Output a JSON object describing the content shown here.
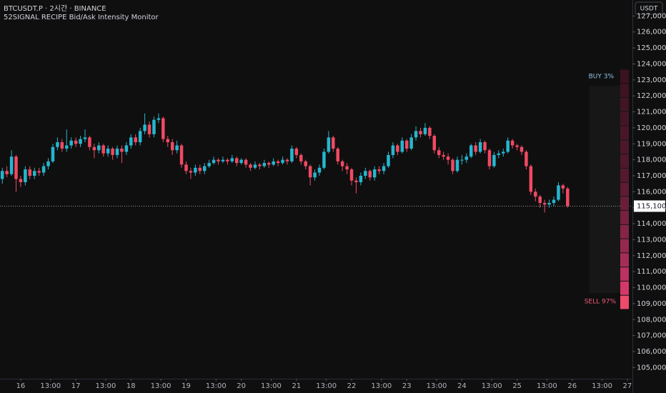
{
  "chart_data": {
    "type": "candlestick",
    "title": "BTCUSDT.P · 2시간 · BINANCE",
    "subtitle": "52SIGNAL RECIPE Bid/Ask Intensity Monitor",
    "currency": "USDT",
    "up_color": "#26b6cf",
    "down_color": "#f04a63",
    "open": [
      116800,
      117300,
      117100,
      118200,
      116800,
      116600,
      117400,
      117000,
      117300,
      117200,
      117600,
      117900,
      118800,
      119100,
      118700,
      118900,
      119200,
      119000,
      119300,
      119400,
      118800,
      118600,
      118900,
      118400,
      118700,
      118300,
      118700,
      118500,
      118900,
      119400,
      119100,
      119800,
      120200,
      119600,
      120500,
      120600,
      119300,
      119100,
      118600,
      118900,
      117700,
      117300,
      117200,
      117500,
      117300,
      117600,
      117800,
      118000,
      117900,
      118000,
      117900,
      118100,
      117800,
      118000,
      117700,
      117500,
      117700,
      117600,
      117800,
      117700,
      117900,
      117800,
      118000,
      117900,
      118700,
      118300,
      117900,
      117600,
      116900,
      117200,
      117500,
      118500,
      119400,
      118700,
      117900,
      117600,
      117400,
      116700,
      116600,
      117000,
      117300,
      116900,
      117400,
      117300,
      117600,
      118300,
      118900,
      118500,
      119200,
      118700,
      119400,
      119800,
      119600,
      120000,
      119500,
      118600,
      118300,
      118200,
      118000,
      117300,
      118000,
      118000,
      118200,
      118900,
      118500,
      119100,
      118600,
      117600,
      118300,
      118400,
      118500,
      119200,
      118900,
      118800,
      118500,
      117600,
      116000,
      115700,
      115300,
      115200,
      115300,
      115500,
      116400,
      116200
    ],
    "high": [
      117500,
      117600,
      118600,
      118300,
      117000,
      117600,
      117600,
      117500,
      117500,
      117800,
      118100,
      119000,
      119400,
      119300,
      119900,
      119400,
      119400,
      119500,
      119900,
      119500,
      119000,
      119100,
      119000,
      118900,
      118800,
      118900,
      118900,
      119100,
      119600,
      119600,
      120000,
      120900,
      120400,
      120700,
      120900,
      120700,
      119500,
      119300,
      119200,
      119000,
      117900,
      117500,
      117700,
      117700,
      117800,
      118000,
      118200,
      118100,
      118200,
      118100,
      118300,
      118200,
      118100,
      118100,
      117800,
      117900,
      117800,
      118000,
      117900,
      118100,
      118000,
      118200,
      118100,
      118900,
      118800,
      118400,
      118000,
      117700,
      117400,
      117700,
      118700,
      119800,
      119500,
      118800,
      118000,
      117800,
      117500,
      116900,
      117200,
      117500,
      117400,
      117600,
      117600,
      117800,
      118500,
      119100,
      119000,
      119400,
      119300,
      119600,
      120100,
      120000,
      120300,
      120100,
      119600,
      118800,
      118500,
      118400,
      118100,
      118200,
      118300,
      118400,
      119000,
      119100,
      119300,
      119200,
      118700,
      118500,
      118600,
      118700,
      119400,
      119300,
      119000,
      118900,
      118600,
      117700,
      116200,
      115800,
      115500,
      115500,
      115700,
      116600,
      116500,
      116300
    ],
    "low": [
      116500,
      116900,
      117000,
      116000,
      116300,
      116400,
      116800,
      116800,
      117000,
      117000,
      117400,
      117800,
      118600,
      118500,
      118500,
      118700,
      118800,
      118800,
      119100,
      118600,
      118100,
      118400,
      118200,
      118200,
      118000,
      118100,
      117800,
      118300,
      118700,
      118900,
      118900,
      119600,
      119400,
      119400,
      120300,
      119100,
      118800,
      118300,
      118400,
      117500,
      117100,
      116800,
      117000,
      117100,
      117100,
      117500,
      117700,
      117700,
      117800,
      117700,
      117800,
      117600,
      117700,
      117500,
      117300,
      117400,
      117400,
      117500,
      117500,
      117600,
      117600,
      117700,
      117700,
      117800,
      118100,
      117700,
      117400,
      116400,
      116700,
      117000,
      117400,
      118400,
      118500,
      117700,
      117300,
      117100,
      116400,
      115900,
      116400,
      116800,
      116700,
      116700,
      117100,
      117100,
      117500,
      118100,
      118300,
      118400,
      118500,
      118600,
      119200,
      119400,
      119500,
      119300,
      118400,
      118100,
      118000,
      117700,
      117100,
      117200,
      117700,
      117800,
      118100,
      118300,
      118400,
      118400,
      117400,
      117500,
      118100,
      118200,
      118400,
      118700,
      118600,
      118300,
      117400,
      115800,
      115400,
      115000,
      114700,
      115000,
      115100,
      115400,
      115900,
      115000
    ],
    "close": [
      117300,
      117100,
      118200,
      116800,
      116600,
      117400,
      117000,
      117300,
      117200,
      117600,
      117900,
      118800,
      119100,
      118700,
      118900,
      119200,
      119000,
      119300,
      119400,
      118800,
      118600,
      118900,
      118400,
      118700,
      118300,
      118700,
      118500,
      118900,
      119400,
      119100,
      119800,
      120200,
      119600,
      120500,
      120600,
      119300,
      119100,
      118600,
      118900,
      117700,
      117300,
      117200,
      117500,
      117300,
      117600,
      117800,
      118000,
      117900,
      118000,
      117900,
      118100,
      117800,
      118000,
      117700,
      117500,
      117700,
      117600,
      117800,
      117700,
      117900,
      117800,
      118000,
      117900,
      118700,
      118300,
      117900,
      117600,
      116900,
      117200,
      117500,
      118500,
      119400,
      118700,
      117900,
      117600,
      117400,
      116700,
      116600,
      117000,
      117300,
      116900,
      117400,
      117300,
      117600,
      118300,
      118900,
      118500,
      119200,
      118700,
      119400,
      119800,
      119600,
      120000,
      119500,
      118600,
      118300,
      118200,
      118000,
      117300,
      118000,
      118000,
      118200,
      118900,
      118500,
      119100,
      118600,
      117600,
      118300,
      118400,
      118500,
      119200,
      118900,
      118800,
      118500,
      117600,
      116000,
      115700,
      115300,
      115200,
      115300,
      115500,
      116400,
      116200,
      115100
    ],
    "xlim": [
      -0.5,
      137.1
    ],
    "xticks": [
      {
        "value": 4,
        "label": "16"
      },
      {
        "value": 10.5,
        "label": "13:00"
      },
      {
        "value": 16,
        "label": "17"
      },
      {
        "value": 22.5,
        "label": "13:00"
      },
      {
        "value": 28,
        "label": "18"
      },
      {
        "value": 34.5,
        "label": "13:00"
      },
      {
        "value": 40,
        "label": "19"
      },
      {
        "value": 46.5,
        "label": "13:00"
      },
      {
        "value": 52,
        "label": "20"
      },
      {
        "value": 58.5,
        "label": "13:00"
      },
      {
        "value": 64,
        "label": "21"
      },
      {
        "value": 70.5,
        "label": "13:00"
      },
      {
        "value": 76,
        "label": "22"
      },
      {
        "value": 82.5,
        "label": "13:00"
      },
      {
        "value": 88,
        "label": "23"
      },
      {
        "value": 94.5,
        "label": "13:00"
      },
      {
        "value": 100,
        "label": "24"
      },
      {
        "value": 106.5,
        "label": "13:00"
      },
      {
        "value": 112,
        "label": "25"
      },
      {
        "value": 118.5,
        "label": "13:00"
      },
      {
        "value": 124,
        "label": "26"
      },
      {
        "value": 130.5,
        "label": "13:00"
      },
      {
        "value": 136,
        "label": "27"
      }
    ],
    "ylim": [
      104300,
      128000
    ],
    "yticks": [
      {
        "value": 105000,
        "label": "105,000.0"
      },
      {
        "value": 106000,
        "label": "106,000.0"
      },
      {
        "value": 107000,
        "label": "107,000.0"
      },
      {
        "value": 108000,
        "label": "108,000.0"
      },
      {
        "value": 109000,
        "label": "109,000.0"
      },
      {
        "value": 110000,
        "label": "110,000.0"
      },
      {
        "value": 111000,
        "label": "111,000.0"
      },
      {
        "value": 112000,
        "label": "112,000.0"
      },
      {
        "value": 113000,
        "label": "113,000.0"
      },
      {
        "value": 114000,
        "label": "114,000.0"
      },
      {
        "value": 115000,
        "label": "115,000.0"
      },
      {
        "value": 116000,
        "label": "116,000.0"
      },
      {
        "value": 117000,
        "label": "117,000.0"
      },
      {
        "value": 118000,
        "label": "118,000.0"
      },
      {
        "value": 119000,
        "label": "119,000.0"
      },
      {
        "value": 120000,
        "label": "120,000.0"
      },
      {
        "value": 121000,
        "label": "121,000.0"
      },
      {
        "value": 122000,
        "label": "122,000.0"
      },
      {
        "value": 123000,
        "label": "123,000.0"
      },
      {
        "value": 124000,
        "label": "124,000.0"
      },
      {
        "value": 125000,
        "label": "125,000.0"
      },
      {
        "value": 126000,
        "label": "126,000.0"
      },
      {
        "value": 127000,
        "label": "127,000.0"
      }
    ],
    "current_price": {
      "value": 115100,
      "label": "115,100.0"
    },
    "indicator": {
      "buy_text": "BUY 3%",
      "sell_text": "SELL 97%",
      "buy_color": "#8fc3e6",
      "sell_color": "#f05a78",
      "level_colors": [
        "#3b1220",
        "#3f1322",
        "#421424",
        "#451526",
        "#491628",
        "#4c172a",
        "#50182c",
        "#55192f",
        "#5e1b33",
        "#6a1e39",
        "#772140",
        "#862447",
        "#95284f",
        "#a62c58",
        "#bb3161",
        "#d33868",
        "#ee4a6c"
      ]
    }
  }
}
